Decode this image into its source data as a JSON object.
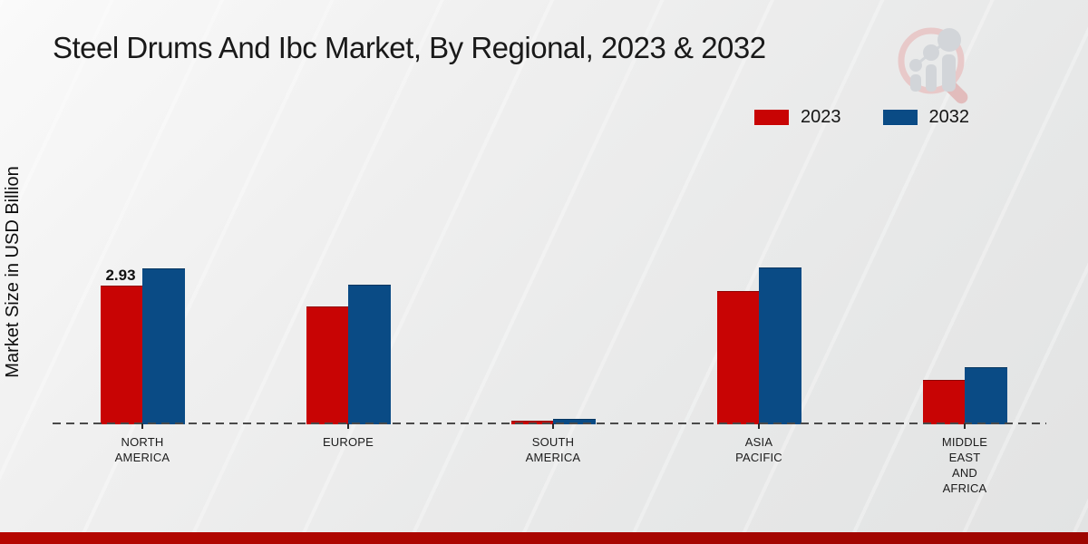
{
  "page": {
    "title": "Steel Drums And Ibc Market, By Regional, 2023 & 2032",
    "ylabel": "Market Size in USD Billion"
  },
  "legend": {
    "items": [
      {
        "label": "2023",
        "color": "#c80404"
      },
      {
        "label": "2032",
        "color": "#0a4b85"
      }
    ]
  },
  "watermark_icon": "magnifier-bar-chart-logo",
  "chart_data": {
    "type": "bar",
    "title": "Steel Drums And Ibc Market, By Regional, 2023 & 2032",
    "xlabel": "",
    "ylabel": "Market Size in USD Billion",
    "categories": [
      "NORTH AMERICA",
      "EUROPE",
      "SOUTH AMERICA",
      "ASIA PACIFIC",
      "MIDDLE EAST AND AFRICA"
    ],
    "categories_lines": [
      [
        "NORTH",
        "AMERICA"
      ],
      [
        "EUROPE"
      ],
      [
        "SOUTH",
        "AMERICA"
      ],
      [
        "ASIA",
        "PACIFIC"
      ],
      [
        "MIDDLE",
        "EAST",
        "AND",
        "AFRICA"
      ]
    ],
    "series": [
      {
        "name": "2023",
        "color": "#c80404",
        "values": [
          2.93,
          2.49,
          0.07,
          2.81,
          0.94
        ]
      },
      {
        "name": "2032",
        "color": "#0a4b85",
        "values": [
          3.29,
          2.95,
          0.11,
          3.31,
          1.21
        ]
      }
    ],
    "annotations": [
      {
        "text": "2.93",
        "series_index": 0,
        "category_index": 0
      }
    ],
    "ylim": [
      0,
      3.5
    ],
    "grid": false,
    "baseline_style": "dashed",
    "legend_position": "top-right",
    "colors": {
      "background": "#ebecec",
      "axis_dash": "#4a4a4a",
      "bottom_strip": "#b50701"
    }
  }
}
